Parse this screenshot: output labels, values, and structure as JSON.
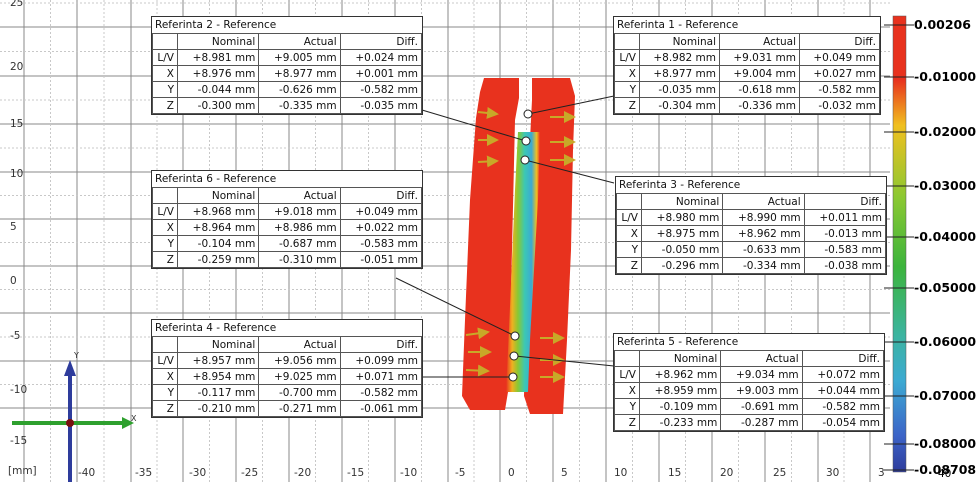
{
  "colors": {
    "accent_red": "#e8321e",
    "accent_blue": "#2e3c9c",
    "arrow_yellow": "#c8a828",
    "axis_green": "#2ea02e"
  },
  "axis": {
    "unit_label": "[mm]",
    "x_ticks": [
      "-40",
      "-35",
      "-30",
      "-25",
      "-20",
      "-15",
      "-10",
      "-5",
      "0",
      "5",
      "10",
      "15",
      "20",
      "25",
      "30",
      "3"
    ],
    "y_ticks": [
      "25",
      "20",
      "15",
      "10",
      "5",
      "0",
      "-5",
      "-10",
      "-15"
    ],
    "triad_x": "X",
    "triad_y": "Y"
  },
  "color_scale": {
    "labels": [
      "0.00206",
      "-0.01000",
      "-0.02000",
      "-0.03000",
      "-0.04000",
      "-0.05000",
      "-0.06000",
      "-0.07000",
      "-0.08000",
      "-0.08708"
    ],
    "extra_tick": "40"
  },
  "table_header": {
    "nominal": "Nominal",
    "actual": "Actual",
    "diff": "Diff."
  },
  "references": [
    {
      "title": "Referinta 2 - Reference",
      "rows": [
        {
          "k": "L/V",
          "nominal": "+8.981 mm",
          "actual": "+9.005 mm",
          "diff": "+0.024 mm"
        },
        {
          "k": "X",
          "nominal": "+8.976 mm",
          "actual": "+8.977 mm",
          "diff": "+0.001 mm"
        },
        {
          "k": "Y",
          "nominal": "-0.044 mm",
          "actual": "-0.626 mm",
          "diff": "-0.582 mm"
        },
        {
          "k": "Z",
          "nominal": "-0.300 mm",
          "actual": "-0.335 mm",
          "diff": "-0.035 mm"
        }
      ]
    },
    {
      "title": "Referinta 1 - Reference",
      "rows": [
        {
          "k": "L/V",
          "nominal": "+8.982 mm",
          "actual": "+9.031 mm",
          "diff": "+0.049 mm"
        },
        {
          "k": "X",
          "nominal": "+8.977 mm",
          "actual": "+9.004 mm",
          "diff": "+0.027 mm"
        },
        {
          "k": "Y",
          "nominal": "-0.035 mm",
          "actual": "-0.618 mm",
          "diff": "-0.582 mm"
        },
        {
          "k": "Z",
          "nominal": "-0.304 mm",
          "actual": "-0.336 mm",
          "diff": "-0.032 mm"
        }
      ]
    },
    {
      "title": "Referinta 6 - Reference",
      "rows": [
        {
          "k": "L/V",
          "nominal": "+8.968 mm",
          "actual": "+9.018 mm",
          "diff": "+0.049 mm"
        },
        {
          "k": "X",
          "nominal": "+8.964 mm",
          "actual": "+8.986 mm",
          "diff": "+0.022 mm"
        },
        {
          "k": "Y",
          "nominal": "-0.104 mm",
          "actual": "-0.687 mm",
          "diff": "-0.583 mm"
        },
        {
          "k": "Z",
          "nominal": "-0.259 mm",
          "actual": "-0.310 mm",
          "diff": "-0.051 mm"
        }
      ]
    },
    {
      "title": "Referinta 3 - Reference",
      "rows": [
        {
          "k": "L/V",
          "nominal": "+8.980 mm",
          "actual": "+8.990 mm",
          "diff": "+0.011 mm"
        },
        {
          "k": "X",
          "nominal": "+8.975 mm",
          "actual": "+8.962 mm",
          "diff": "-0.013 mm"
        },
        {
          "k": "Y",
          "nominal": "-0.050 mm",
          "actual": "-0.633 mm",
          "diff": "-0.583 mm"
        },
        {
          "k": "Z",
          "nominal": "-0.296 mm",
          "actual": "-0.334 mm",
          "diff": "-0.038 mm"
        }
      ]
    },
    {
      "title": "Referinta 4 - Reference",
      "rows": [
        {
          "k": "L/V",
          "nominal": "+8.957 mm",
          "actual": "+9.056 mm",
          "diff": "+0.099 mm"
        },
        {
          "k": "X",
          "nominal": "+8.954 mm",
          "actual": "+9.025 mm",
          "diff": "+0.071 mm"
        },
        {
          "k": "Y",
          "nominal": "-0.117 mm",
          "actual": "-0.700 mm",
          "diff": "-0.582 mm"
        },
        {
          "k": "Z",
          "nominal": "-0.210 mm",
          "actual": "-0.271 mm",
          "diff": "-0.061 mm"
        }
      ]
    },
    {
      "title": "Referinta 5 - Reference",
      "rows": [
        {
          "k": "L/V",
          "nominal": "+8.962 mm",
          "actual": "+9.034 mm",
          "diff": "+0.072 mm"
        },
        {
          "k": "X",
          "nominal": "+8.959 mm",
          "actual": "+9.003 mm",
          "diff": "+0.044 mm"
        },
        {
          "k": "Y",
          "nominal": "-0.109 mm",
          "actual": "-0.691 mm",
          "diff": "-0.582 mm"
        },
        {
          "k": "Z",
          "nominal": "-0.233 mm",
          "actual": "-0.287 mm",
          "diff": "-0.054 mm"
        }
      ]
    }
  ]
}
